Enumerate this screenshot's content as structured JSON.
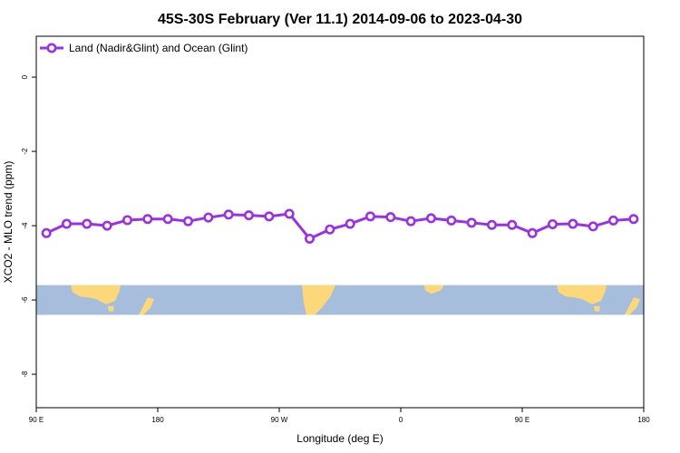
{
  "chart_data": {
    "type": "line",
    "title": "45S-30S February (Ver 11.1)   2014-09-06 to 2023-04-30",
    "xlabel": "Longitude (deg E)",
    "ylabel": "XCO2 - MLO trend (ppm)",
    "x_ticks": [
      {
        "value": 90,
        "label": "90 E"
      },
      {
        "value": 180,
        "label": "180"
      },
      {
        "value": 270,
        "label": "90 W"
      },
      {
        "value": 360,
        "label": "0"
      },
      {
        "value": 450,
        "label": "90 E"
      },
      {
        "value": 540,
        "label": "180"
      }
    ],
    "y_ticks": [
      0,
      -2,
      -4,
      -6,
      -8
    ],
    "xlim": [
      90,
      540
    ],
    "ylim": [
      -8.9,
      1.1
    ],
    "legend_position": "top-left",
    "grid": false,
    "series": [
      {
        "name": "Land (Nadir&Glint) and Ocean (Glint)",
        "color": "#9b30e8",
        "x": [
          97.5,
          112.5,
          127.5,
          142.5,
          157.5,
          172.5,
          187.5,
          202.5,
          217.5,
          232.5,
          247.5,
          262.5,
          277.5,
          292.5,
          307.5,
          322.5,
          337.5,
          352.5,
          367.5,
          382.5,
          397.5,
          412.5,
          427.5,
          442.5,
          457.5,
          472.5,
          487.5,
          502.5,
          517.5,
          532.5
        ],
        "values": [
          -4.2,
          -3.95,
          -3.95,
          -4.0,
          -3.85,
          -3.82,
          -3.82,
          -3.88,
          -3.78,
          -3.7,
          -3.72,
          -3.75,
          -3.68,
          -4.35,
          -4.1,
          -3.95,
          -3.75,
          -3.77,
          -3.88,
          -3.8,
          -3.86,
          -3.92,
          -3.98,
          -3.98,
          -4.2,
          -3.96,
          -3.95,
          -4.02,
          -3.86,
          -3.82
        ]
      }
    ],
    "map_strip": {
      "ocean_color": "#a6bddb",
      "land_color": "#fdd87a",
      "lat_range": [
        -45,
        -30
      ]
    }
  }
}
